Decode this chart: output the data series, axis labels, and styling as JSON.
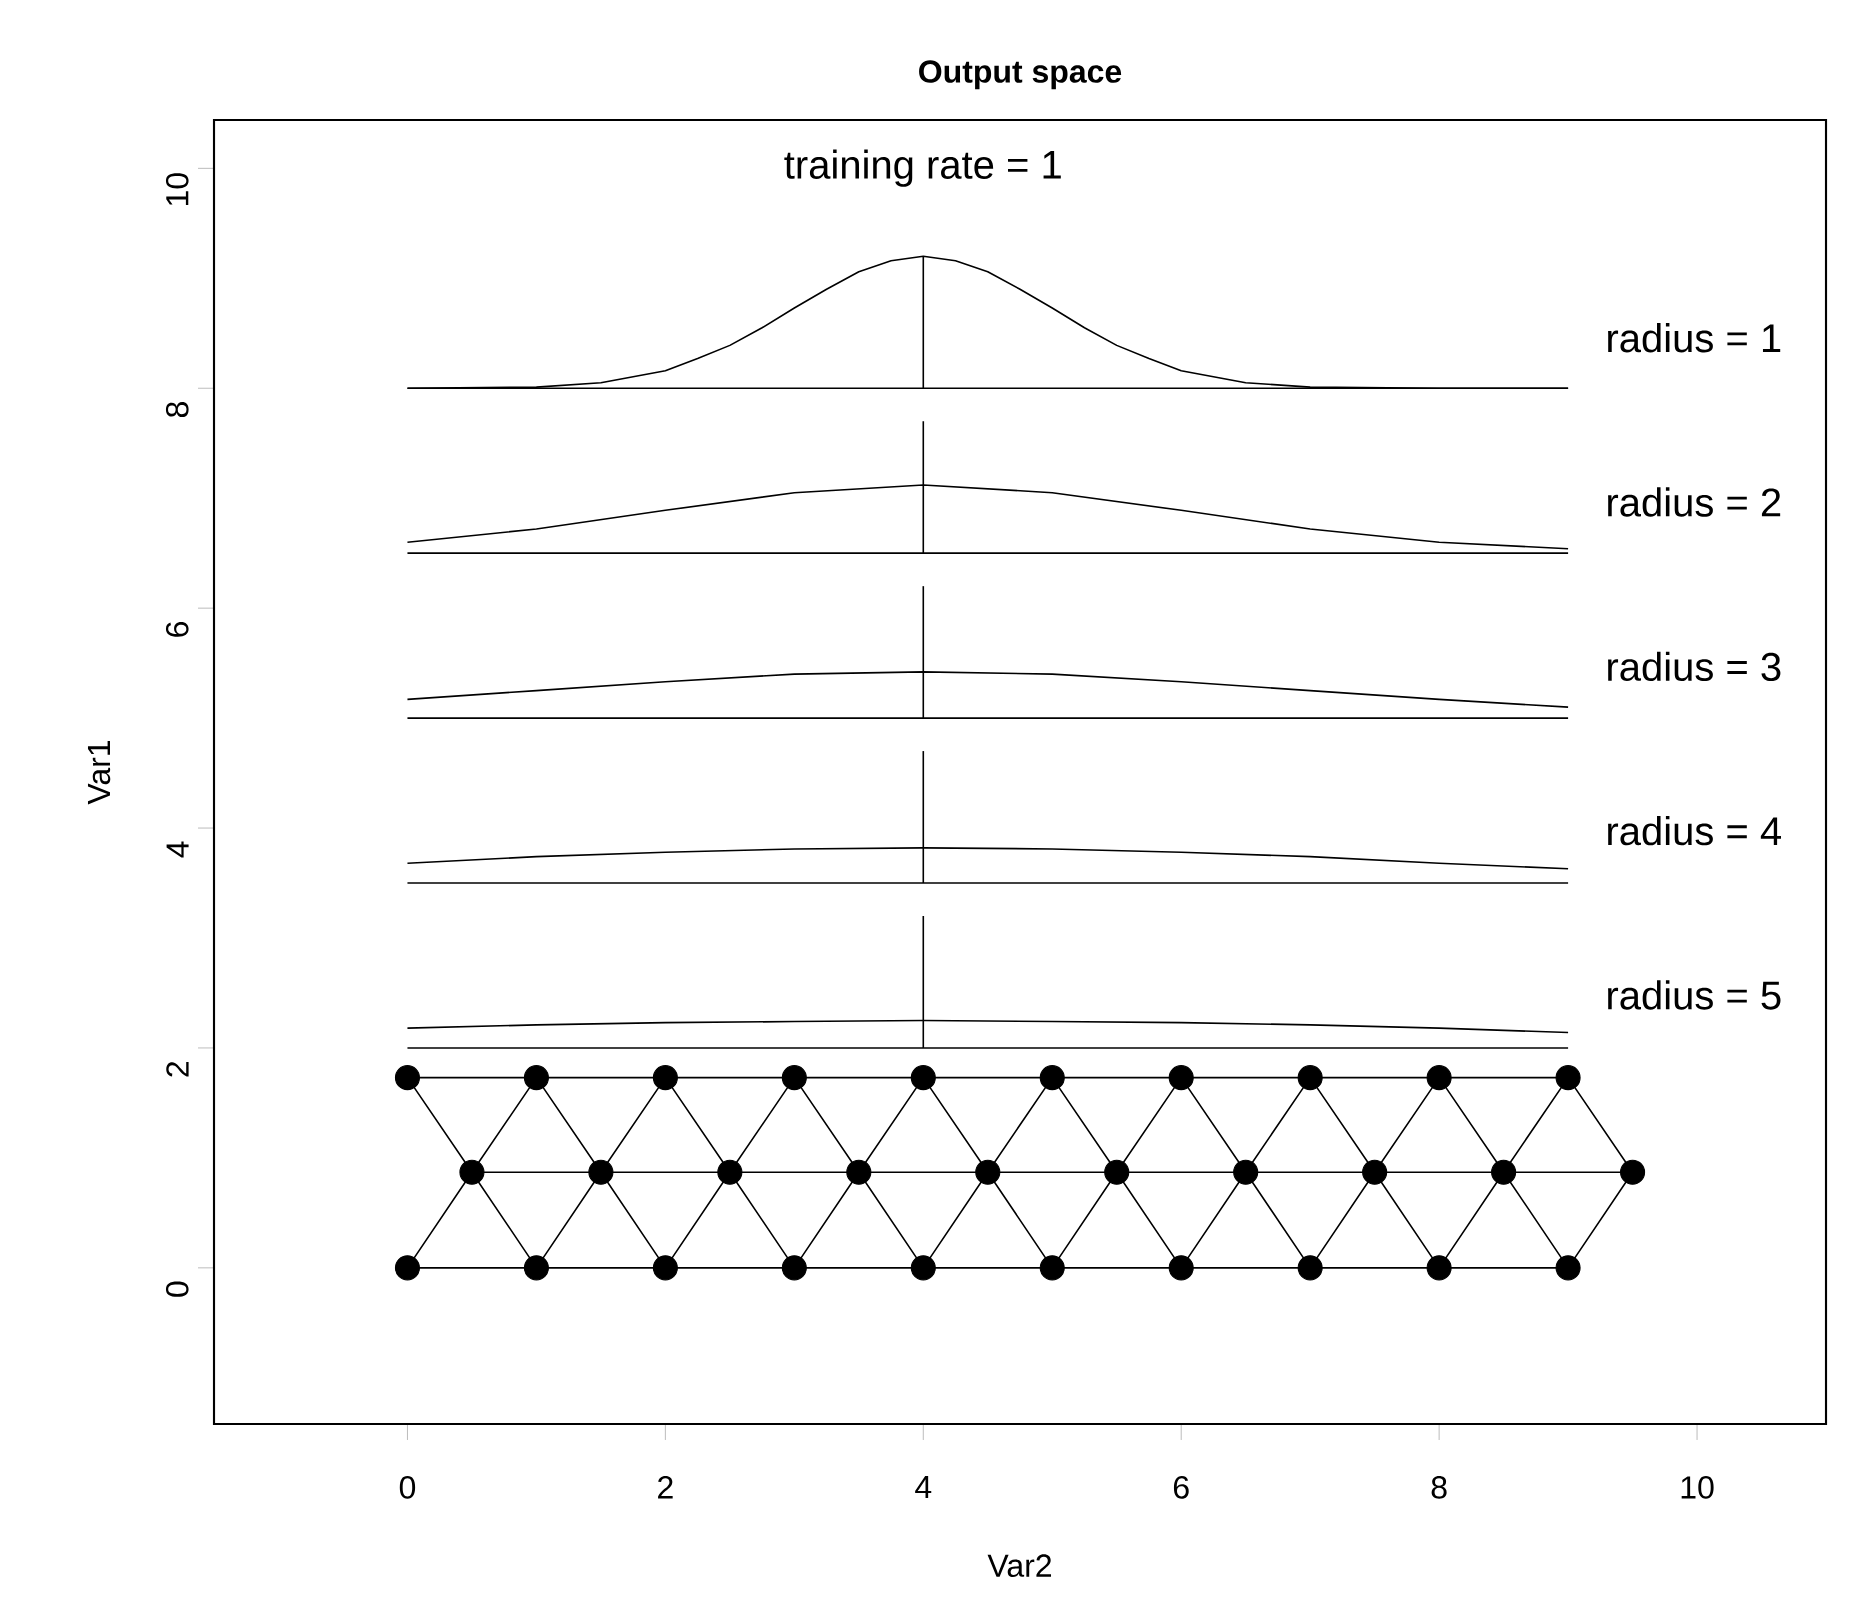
{
  "chart_data": {
    "type": "line",
    "title": "Output space",
    "xlabel": "Var2",
    "ylabel": "Var1",
    "xlim": [
      -1.5,
      11
    ],
    "ylim": [
      -1.42,
      10.44
    ],
    "xticks": [
      0,
      2,
      4,
      6,
      8,
      10
    ],
    "yticks": [
      0,
      2,
      4,
      6,
      8,
      10
    ],
    "grid": false,
    "marker": "none",
    "line_style": "solid",
    "annotations": [
      "training rate = 1",
      "radius = 1",
      "radius = 2",
      "radius = 3",
      "radius = 4",
      "radius = 5"
    ],
    "series": [
      {
        "color": "#000000",
        "x": [
          0,
          9
        ],
        "values": [
          8,
          8
        ]
      },
      {
        "color": "#000000",
        "x": [
          0,
          1,
          1.5,
          2,
          2.25,
          2.5,
          2.75,
          3,
          3.25,
          3.5,
          3.75,
          4,
          4.25,
          4.5,
          4.75,
          5,
          5.25,
          5.5,
          5.75,
          6,
          6.5,
          7,
          8,
          9
        ],
        "values": [
          8.0,
          8.01,
          8.05,
          8.16,
          8.27,
          8.39,
          8.55,
          8.73,
          8.9,
          9.06,
          9.16,
          9.2,
          9.16,
          9.06,
          8.9,
          8.73,
          8.55,
          8.39,
          8.27,
          8.16,
          8.05,
          8.01,
          8.0,
          8.0
        ]
      },
      {
        "color": "#000000",
        "x": [
          4,
          4
        ],
        "values": [
          8,
          9.2
        ]
      },
      {
        "color": "#000000",
        "x": [
          0,
          9
        ],
        "values": [
          6.5,
          6.5
        ]
      },
      {
        "color": "#000000",
        "x": [
          0,
          1,
          2,
          3,
          4,
          5,
          6,
          7,
          8,
          9
        ],
        "values": [
          6.6,
          6.72,
          6.89,
          7.05,
          7.12,
          7.05,
          6.89,
          6.72,
          6.6,
          6.54
        ]
      },
      {
        "color": "#000000",
        "x": [
          4,
          4
        ],
        "values": [
          6.5,
          7.7
        ]
      },
      {
        "color": "#000000",
        "x": [
          0,
          9
        ],
        "values": [
          5,
          5
        ]
      },
      {
        "color": "#000000",
        "x": [
          0,
          1,
          2,
          3,
          4,
          5,
          6,
          7,
          8,
          9
        ],
        "values": [
          5.17,
          5.25,
          5.33,
          5.4,
          5.42,
          5.4,
          5.33,
          5.25,
          5.17,
          5.1
        ]
      },
      {
        "color": "#000000",
        "x": [
          4,
          4
        ],
        "values": [
          5,
          6.2
        ]
      },
      {
        "color": "#000000",
        "x": [
          0,
          9
        ],
        "values": [
          3.5,
          3.5
        ]
      },
      {
        "color": "#000000",
        "x": [
          0,
          1,
          2,
          3,
          4,
          5,
          6,
          7,
          8,
          9
        ],
        "values": [
          3.68,
          3.74,
          3.78,
          3.81,
          3.82,
          3.81,
          3.78,
          3.74,
          3.68,
          3.63
        ]
      },
      {
        "color": "#000000",
        "x": [
          4,
          4
        ],
        "values": [
          3.5,
          4.7
        ]
      },
      {
        "color": "#000000",
        "x": [
          0,
          9
        ],
        "values": [
          2,
          2
        ]
      },
      {
        "color": "#000000",
        "x": [
          0,
          1,
          2,
          3,
          4,
          5,
          6,
          7,
          8,
          9
        ],
        "values": [
          2.18,
          2.21,
          2.23,
          2.24,
          2.25,
          2.24,
          2.23,
          2.21,
          2.18,
          2.14
        ]
      },
      {
        "color": "#000000",
        "x": [
          4,
          4
        ],
        "values": [
          2,
          3.2
        ]
      },
      {
        "color": "#000000",
        "x": [
          0,
          9
        ],
        "values": [
          0,
          0
        ]
      },
      {
        "color": "#000000",
        "x": [
          0.5,
          9.5
        ],
        "values": [
          0.87,
          0.87
        ]
      },
      {
        "color": "#000000",
        "x": [
          0,
          9
        ],
        "values": [
          1.73,
          1.73
        ]
      },
      {
        "color": "#000000",
        "x": [
          0,
          0.5,
          1,
          1.5,
          2,
          2.5,
          3,
          3.5,
          4,
          4.5,
          5,
          5.5,
          6,
          6.5,
          7,
          7.5,
          8,
          8.5,
          9,
          9.5
        ],
        "values": [
          0,
          0.87,
          0,
          0.87,
          0,
          0.87,
          0,
          0.87,
          0,
          0.87,
          0,
          0.87,
          0,
          0.87,
          0,
          0.87,
          0,
          0.87,
          0,
          0.87
        ]
      },
      {
        "color": "#000000",
        "x": [
          0,
          0.5,
          1,
          1.5,
          2,
          2.5,
          3,
          3.5,
          4,
          4.5,
          5,
          5.5,
          6,
          6.5,
          7,
          7.5,
          8,
          8.5,
          9,
          9.5
        ],
        "values": [
          1.73,
          0.87,
          1.73,
          0.87,
          1.73,
          0.87,
          1.73,
          0.87,
          1.73,
          0.87,
          1.73,
          0.87,
          1.73,
          0.87,
          1.73,
          0.87,
          1.73,
          0.87,
          1.73,
          0.87
        ]
      },
      {
        "type": "scatter",
        "marker": "circle",
        "color": "#000000",
        "x": [
          0,
          1,
          2,
          3,
          4,
          5,
          6,
          7,
          8,
          9,
          0.5,
          1.5,
          2.5,
          3.5,
          4.5,
          5.5,
          6.5,
          7.5,
          8.5,
          9.5,
          0,
          1,
          2,
          3,
          4,
          5,
          6,
          7,
          8,
          9
        ],
        "values": [
          0,
          0,
          0,
          0,
          0,
          0,
          0,
          0,
          0,
          0,
          0.87,
          0.87,
          0.87,
          0.87,
          0.87,
          0.87,
          0.87,
          0.87,
          0.87,
          0.87,
          1.73,
          1.73,
          1.73,
          1.73,
          1.73,
          1.73,
          1.73,
          1.73,
          1.73,
          1.73
        ]
      }
    ]
  }
}
